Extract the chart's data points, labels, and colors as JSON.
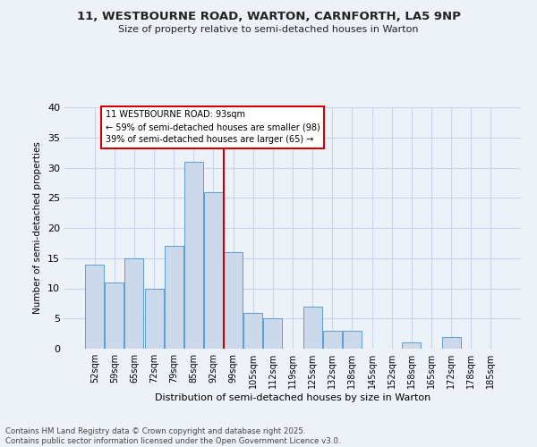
{
  "title1": "11, WESTBOURNE ROAD, WARTON, CARNFORTH, LA5 9NP",
  "title2": "Size of property relative to semi-detached houses in Warton",
  "xlabel": "Distribution of semi-detached houses by size in Warton",
  "ylabel": "Number of semi-detached properties",
  "categories": [
    "52sqm",
    "59sqm",
    "65sqm",
    "72sqm",
    "79sqm",
    "85sqm",
    "92sqm",
    "99sqm",
    "105sqm",
    "112sqm",
    "119sqm",
    "125sqm",
    "132sqm",
    "138sqm",
    "145sqm",
    "152sqm",
    "158sqm",
    "165sqm",
    "172sqm",
    "178sqm",
    "185sqm"
  ],
  "bar_values": [
    14,
    11,
    15,
    10,
    17,
    31,
    26,
    16,
    6,
    5,
    0,
    7,
    3,
    3,
    0,
    0,
    1,
    0,
    2,
    0,
    0
  ],
  "bar_color": "#ccd9ea",
  "bar_edge_color": "#5b9bd5",
  "vline_x_index": 6,
  "vline_color": "#cc0000",
  "annotation_title": "11 WESTBOURNE ROAD: 93sqm",
  "annotation_line1": "← 59% of semi-detached houses are smaller (98)",
  "annotation_line2": "39% of semi-detached houses are larger (65) →",
  "annotation_box_edge": "#cc0000",
  "ylim": [
    0,
    40
  ],
  "yticks": [
    0,
    5,
    10,
    15,
    20,
    25,
    30,
    35,
    40
  ],
  "footnote1": "Contains HM Land Registry data © Crown copyright and database right 2025.",
  "footnote2": "Contains public sector information licensed under the Open Government Licence v3.0.",
  "bg_color": "#edf2f9",
  "grid_color": "#c8d4e8"
}
